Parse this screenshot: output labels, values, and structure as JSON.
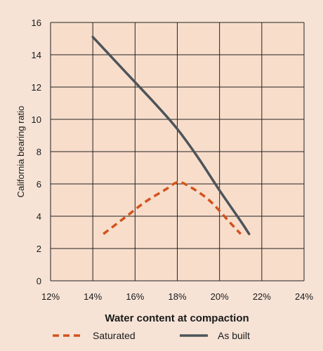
{
  "chart_data": {
    "type": "line",
    "title": "",
    "xlabel": "Water content at compaction",
    "ylabel": "California bearing ratio",
    "xlim": [
      12,
      24
    ],
    "ylim": [
      0,
      16
    ],
    "x_ticks": [
      12,
      14,
      16,
      18,
      20,
      22,
      24
    ],
    "x_tick_labels": [
      "12%",
      "14%",
      "16%",
      "18%",
      "20%",
      "22%",
      "24%"
    ],
    "y_ticks": [
      0,
      2,
      4,
      6,
      8,
      10,
      12,
      14,
      16
    ],
    "y_tick_labels": [
      "0",
      "2",
      "4",
      "6",
      "8",
      "10",
      "12",
      "14",
      "16"
    ],
    "grid": true,
    "legend_position": "bottom",
    "series": [
      {
        "name": "Saturated",
        "style": "dashed",
        "color": "#d2531c",
        "x": [
          14.5,
          15.5,
          16.5,
          17.5,
          18.0,
          18.5,
          19.5,
          20.5,
          21.0
        ],
        "y": [
          2.9,
          3.9,
          4.9,
          5.7,
          6.1,
          5.9,
          5.0,
          3.6,
          2.9
        ]
      },
      {
        "name": "As built",
        "style": "solid",
        "color": "#4d5459",
        "x": [
          14.0,
          14.5,
          15.0,
          16.0,
          17.0,
          18.0,
          19.0,
          20.0,
          21.0,
          21.4
        ],
        "y": [
          15.1,
          14.4,
          13.7,
          12.3,
          10.9,
          9.4,
          7.6,
          5.6,
          3.7,
          2.9
        ]
      }
    ]
  }
}
